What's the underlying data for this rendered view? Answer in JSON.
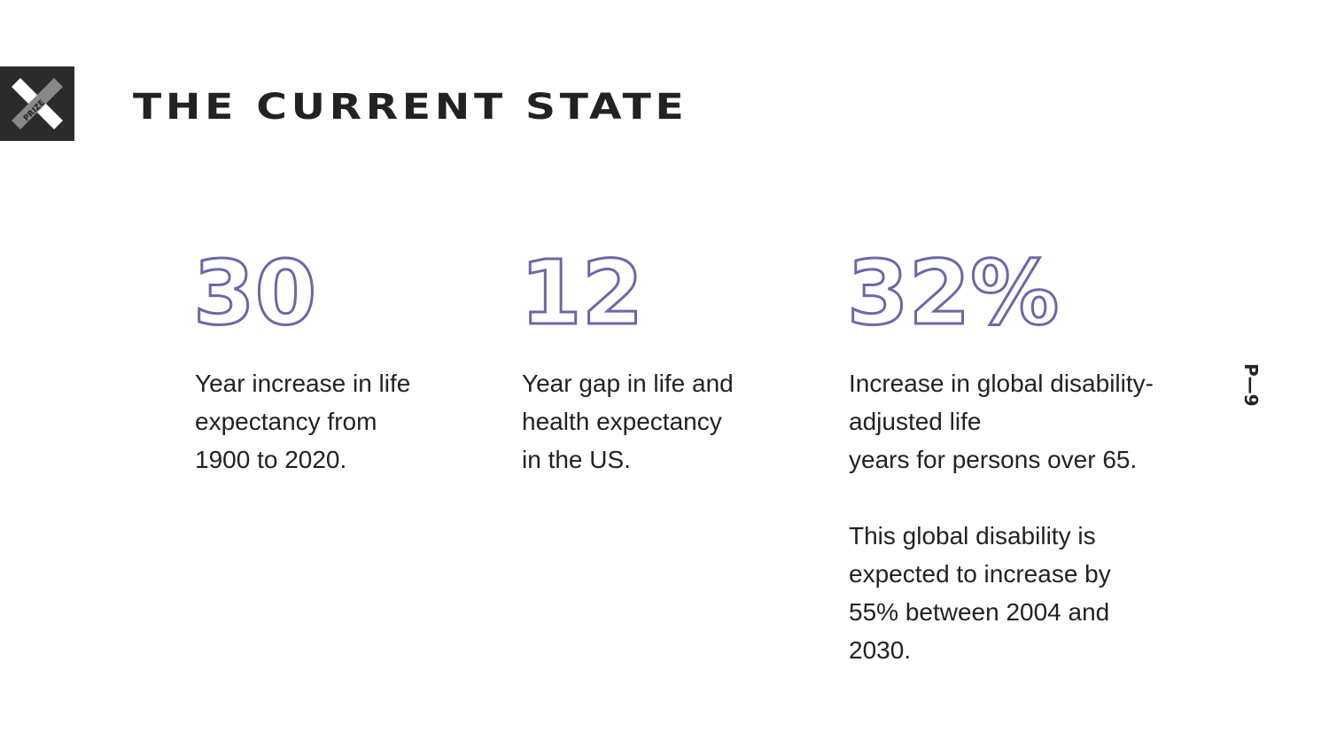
{
  "logo": {
    "text": "PRIZE"
  },
  "header": {
    "title": "THE CURRENT STATE"
  },
  "page_number": "P—9",
  "stats": [
    {
      "value": "30",
      "paragraphs": [
        [
          "Year increase in life",
          "expectancy from",
          "1900 to 2020."
        ]
      ]
    },
    {
      "value": "12",
      "paragraphs": [
        [
          "Year gap in life and",
          "health expectancy",
          "in the US."
        ]
      ]
    },
    {
      "value": "32%",
      "paragraphs": [
        [
          "Increase in global disability-",
          "adjusted life",
          "years for persons over 65."
        ],
        [
          "This global disability is",
          "expected to increase by",
          "55% between 2004 and",
          "2030."
        ]
      ]
    }
  ]
}
